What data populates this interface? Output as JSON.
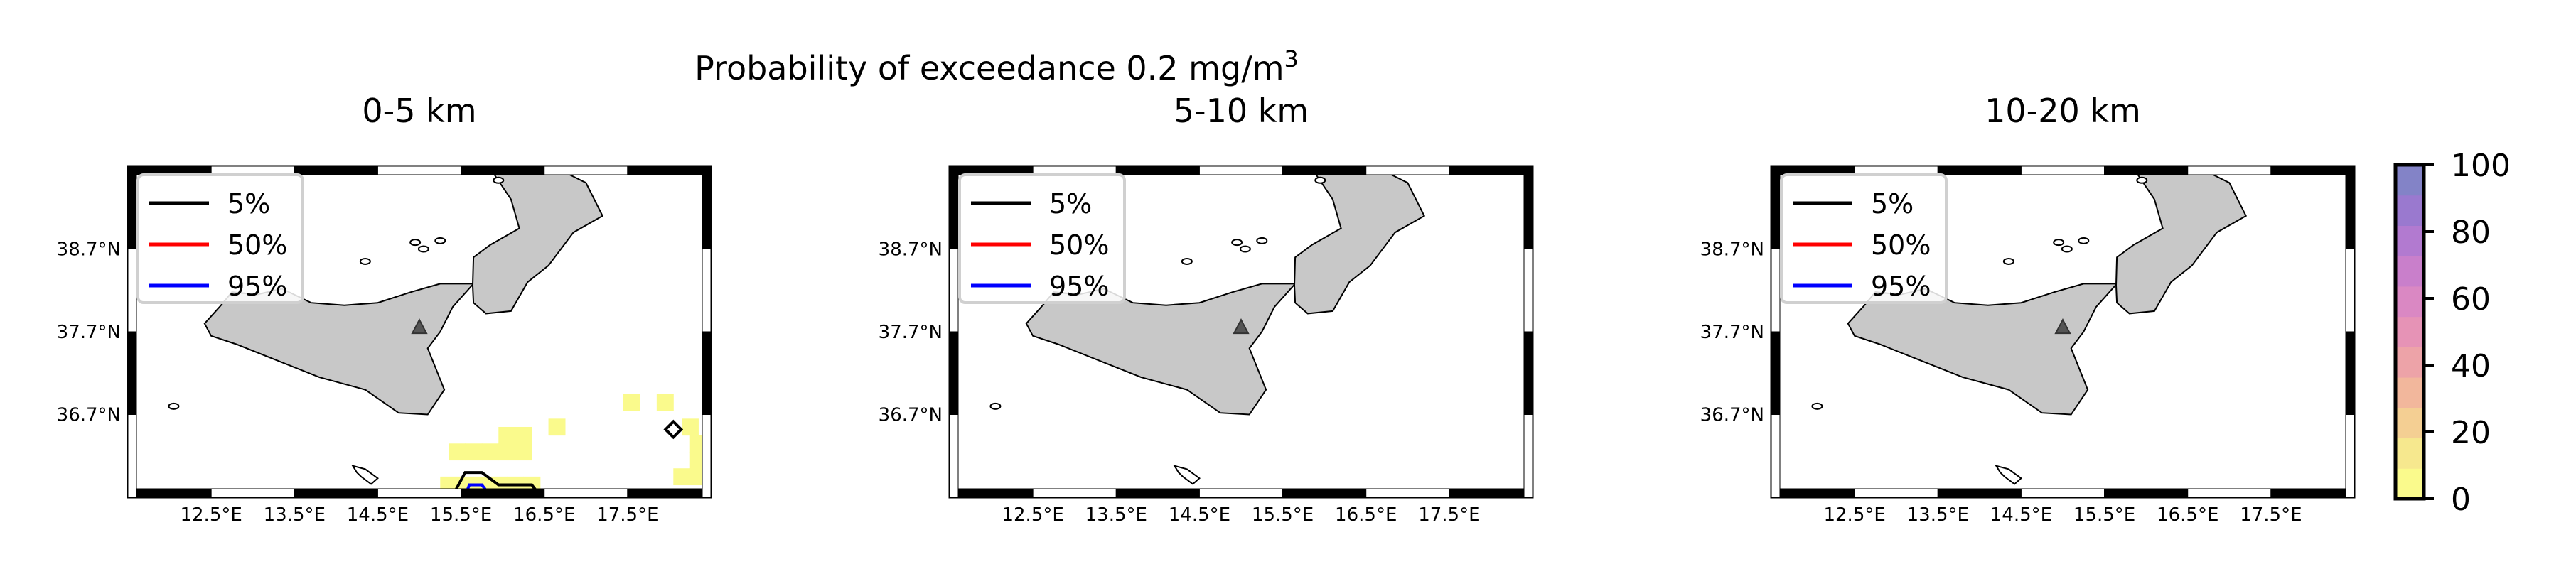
{
  "figure": {
    "title_prefix": "Probability of exceedance 0.2 mg/m",
    "title_superscript": "3"
  },
  "chart_data": [
    {
      "type": "heatmap",
      "title": "0-5 km",
      "xlabel": "",
      "ylabel": "",
      "xlim": [
        11.5,
        18.5
      ],
      "ylim": [
        35.7,
        39.7
      ],
      "x_ticks": [
        "12.5°E",
        "13.5°E",
        "14.5°E",
        "15.5°E",
        "16.5°E",
        "17.5°E"
      ],
      "y_ticks": [
        "38.7°N",
        "37.7°N",
        "36.7°N"
      ],
      "grid": false,
      "legend_position": "top-left",
      "legend": [
        {
          "label": "5%",
          "color": "#000000"
        },
        {
          "label": "50%",
          "color": "#ff0000"
        },
        {
          "label": "95%",
          "color": "#0000ff"
        }
      ],
      "volcano": {
        "name": "Etna",
        "lon": 15.0,
        "lat": 37.75
      },
      "cells": [
        {
          "lon": 15.45,
          "lat": 36.25,
          "p": 3
        },
        {
          "lon": 15.65,
          "lat": 36.25,
          "p": 3
        },
        {
          "lon": 15.85,
          "lat": 36.25,
          "p": 3
        },
        {
          "lon": 16.05,
          "lat": 36.25,
          "p": 3
        },
        {
          "lon": 16.25,
          "lat": 36.25,
          "p": 3
        },
        {
          "lon": 16.05,
          "lat": 36.45,
          "p": 3
        },
        {
          "lon": 16.25,
          "lat": 36.45,
          "p": 3
        },
        {
          "lon": 16.65,
          "lat": 36.55,
          "p": 3
        },
        {
          "lon": 17.55,
          "lat": 36.85,
          "p": 3
        },
        {
          "lon": 17.95,
          "lat": 36.85,
          "p": 3
        },
        {
          "lon": 18.25,
          "lat": 36.55,
          "p": 3
        },
        {
          "lon": 18.35,
          "lat": 36.35,
          "p": 3
        },
        {
          "lon": 18.35,
          "lat": 36.15,
          "p": 3
        },
        {
          "lon": 18.35,
          "lat": 35.95,
          "p": 3
        },
        {
          "lon": 18.15,
          "lat": 35.95,
          "p": 3
        },
        {
          "lon": 15.35,
          "lat": 35.85,
          "p": 6
        },
        {
          "lon": 15.55,
          "lat": 35.85,
          "p": 8
        },
        {
          "lon": 15.75,
          "lat": 35.85,
          "p": 6
        },
        {
          "lon": 15.95,
          "lat": 35.85,
          "p": 5
        },
        {
          "lon": 16.15,
          "lat": 35.85,
          "p": 5
        },
        {
          "lon": 16.35,
          "lat": 35.85,
          "p": 5
        }
      ]
    },
    {
      "type": "heatmap",
      "title": "5-10 km",
      "xlabel": "",
      "ylabel": "",
      "xlim": [
        11.5,
        18.5
      ],
      "ylim": [
        35.7,
        39.7
      ],
      "x_ticks": [
        "12.5°E",
        "13.5°E",
        "14.5°E",
        "15.5°E",
        "16.5°E",
        "17.5°E"
      ],
      "y_ticks": [
        "38.7°N",
        "37.7°N",
        "36.7°N"
      ],
      "grid": false,
      "legend_position": "top-left",
      "legend": [
        {
          "label": "5%",
          "color": "#000000"
        },
        {
          "label": "50%",
          "color": "#ff0000"
        },
        {
          "label": "95%",
          "color": "#0000ff"
        }
      ],
      "volcano": {
        "name": "Etna",
        "lon": 15.0,
        "lat": 37.75
      },
      "cells": []
    },
    {
      "type": "heatmap",
      "title": "10-20 km",
      "xlabel": "",
      "ylabel": "",
      "xlim": [
        11.5,
        18.5
      ],
      "ylim": [
        35.7,
        39.7
      ],
      "x_ticks": [
        "12.5°E",
        "13.5°E",
        "14.5°E",
        "15.5°E",
        "16.5°E",
        "17.5°E"
      ],
      "y_ticks": [
        "38.7°N",
        "37.7°N",
        "36.7°N"
      ],
      "grid": false,
      "legend_position": "top-left",
      "legend": [
        {
          "label": "5%",
          "color": "#000000"
        },
        {
          "label": "50%",
          "color": "#ff0000"
        },
        {
          "label": "95%",
          "color": "#0000ff"
        }
      ],
      "volcano": {
        "name": "Etna",
        "lon": 15.0,
        "lat": 37.75
      },
      "cells": []
    }
  ],
  "colorbar": {
    "range": [
      0,
      100
    ],
    "ticks": [
      "0",
      "20",
      "40",
      "60",
      "80",
      "100"
    ],
    "colors": [
      "#fafa8c",
      "#f6e88e",
      "#f4cf93",
      "#f2b79c",
      "#eda3a8",
      "#e693b6",
      "#da88c3",
      "#c97fcb",
      "#b27ad0",
      "#9a79cf",
      "#8383c7"
    ]
  }
}
